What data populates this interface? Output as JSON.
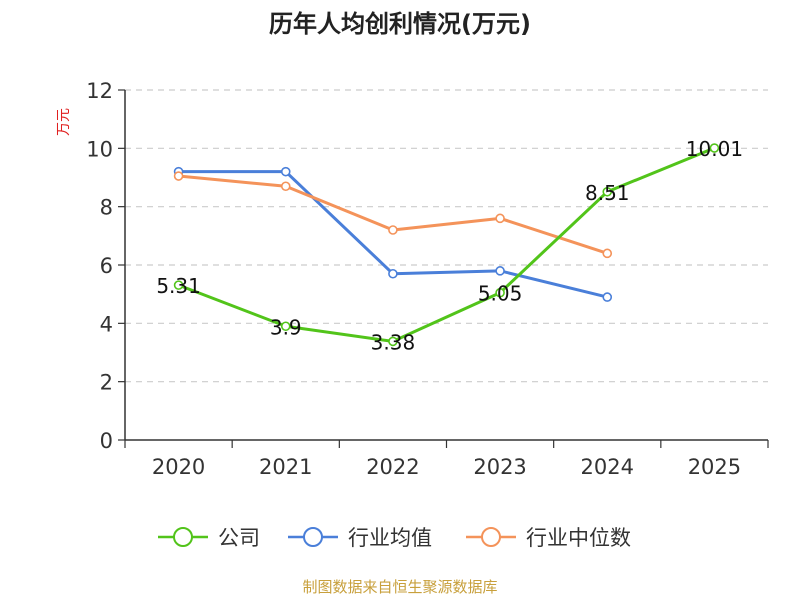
{
  "chart_data": {
    "type": "line",
    "title": "历年人均创利情况(万元)",
    "ylabel": "万元",
    "xlabel": "",
    "ylim": [
      0,
      12
    ],
    "yticks": [
      0,
      2,
      4,
      6,
      8,
      10,
      12
    ],
    "categories": [
      "2020",
      "2021",
      "2022",
      "2023",
      "2024",
      "2025"
    ],
    "grid": true,
    "legend_position": "bottom",
    "series": [
      {
        "name": "公司",
        "color": "#52c41a",
        "values": [
          5.31,
          3.9,
          3.38,
          5.05,
          8.51,
          10.01
        ],
        "labels": [
          "5.31",
          "3.9",
          "3.38",
          "5.05",
          "8.51",
          "10.01"
        ]
      },
      {
        "name": "行业均值",
        "color": "#4a7fd9",
        "values": [
          9.2,
          9.2,
          5.7,
          5.8,
          4.9,
          null
        ]
      },
      {
        "name": "行业中位数",
        "color": "#f4935a",
        "values": [
          9.05,
          8.7,
          7.2,
          7.6,
          6.4,
          null
        ]
      }
    ]
  },
  "source": "制图数据来自恒生聚源数据库"
}
